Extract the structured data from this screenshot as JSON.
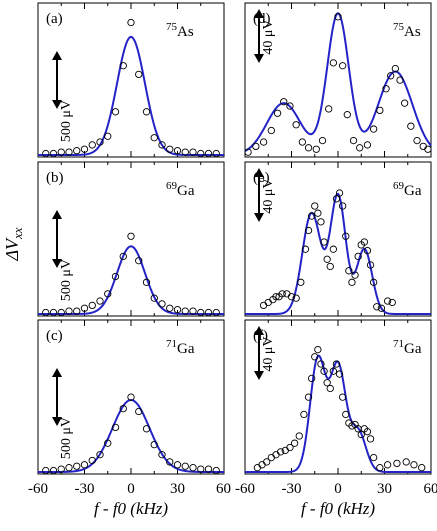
{
  "figure": {
    "y_axis_label": "ΔV",
    "y_axis_label_sub": "xx"
  },
  "chart_data": [
    {
      "id": "a",
      "type": "line",
      "panel_label": "(a)",
      "nucleus_mass": "75",
      "nucleus": "As",
      "scale_bar_label": "500 μV",
      "xlabel": "",
      "xlim": [
        -60,
        60
      ],
      "ylim": [
        0,
        1.0
      ],
      "fit": {
        "name": "",
        "color": "#2323c8",
        "peaks": [
          {
            "center": 0,
            "amp": 0.82,
            "width": 9
          }
        ]
      },
      "points": {
        "x": [
          -55,
          -50,
          -45,
          -40,
          -35,
          -30,
          -25,
          -20,
          -15,
          -10,
          -5,
          0,
          5,
          10,
          15,
          20,
          25,
          30,
          35,
          40,
          45,
          50,
          55
        ],
        "y": [
          0.01,
          0.01,
          0.02,
          0.02,
          0.03,
          0.04,
          0.07,
          0.09,
          0.13,
          0.3,
          0.62,
          0.92,
          0.56,
          0.3,
          0.12,
          0.07,
          0.04,
          0.03,
          0.02,
          0.02,
          0.01,
          0.01,
          0.01
        ]
      }
    },
    {
      "id": "b",
      "type": "line",
      "panel_label": "(b)",
      "nucleus_mass": "69",
      "nucleus": "Ga",
      "scale_bar_label": "500 μV",
      "xlabel": "",
      "xlim": [
        -60,
        60
      ],
      "ylim": [
        0,
        1.0
      ],
      "fit": {
        "name": "",
        "color": "#2323c8",
        "peaks": [
          {
            "center": 0,
            "amp": 0.47,
            "width": 9
          }
        ]
      },
      "points": {
        "x": [
          -55,
          -50,
          -45,
          -40,
          -35,
          -30,
          -25,
          -20,
          -15,
          -10,
          -5,
          0,
          5,
          10,
          15,
          20,
          25,
          30,
          35,
          40,
          45,
          50,
          55
        ],
        "y": [
          0.01,
          0.01,
          0.01,
          0.02,
          0.02,
          0.04,
          0.06,
          0.09,
          0.14,
          0.26,
          0.4,
          0.54,
          0.37,
          0.22,
          0.11,
          0.07,
          0.04,
          0.03,
          0.02,
          0.02,
          0.01,
          0.01,
          0.01
        ]
      }
    },
    {
      "id": "c",
      "type": "line",
      "panel_label": "(c)",
      "nucleus_mass": "71",
      "nucleus": "Ga",
      "scale_bar_label": "500 μV",
      "xlabel": "f - f0 (kHz)",
      "xtick_labels": [
        "-60",
        "-30",
        "0",
        "30",
        "60"
      ],
      "xlim": [
        -60,
        60
      ],
      "ylim": [
        0,
        1.0
      ],
      "fit": {
        "name": "",
        "color": "#2323c8",
        "peaks": [
          {
            "center": 0,
            "amp": 0.5,
            "width": 12
          }
        ]
      },
      "points": {
        "x": [
          -55,
          -50,
          -45,
          -40,
          -35,
          -30,
          -25,
          -20,
          -15,
          -10,
          -5,
          0,
          5,
          10,
          15,
          20,
          25,
          30,
          35,
          40,
          45,
          50,
          55
        ],
        "y": [
          0.01,
          0.01,
          0.02,
          0.03,
          0.04,
          0.05,
          0.08,
          0.12,
          0.2,
          0.31,
          0.44,
          0.52,
          0.42,
          0.3,
          0.19,
          0.12,
          0.07,
          0.05,
          0.04,
          0.03,
          0.02,
          0.02,
          0.01
        ]
      }
    },
    {
      "id": "d",
      "type": "line",
      "panel_label": "(d)",
      "nucleus_mass": "75",
      "nucleus": "As",
      "scale_bar_label": "40 μV",
      "xlabel": "",
      "xlim": [
        -60,
        60
      ],
      "ylim": [
        0,
        1.0
      ],
      "fit": {
        "name": "",
        "color": "#2323c8",
        "peaks": [
          {
            "center": -35,
            "amp": 0.36,
            "width": 11
          },
          {
            "center": 0,
            "amp": 0.98,
            "width": 7
          },
          {
            "center": 37,
            "amp": 0.58,
            "width": 11
          }
        ]
      },
      "points": {
        "x": [
          -58,
          -53,
          -48,
          -43,
          -39,
          -35,
          -31,
          -27,
          -23,
          -19,
          -14,
          -10,
          -6,
          -3,
          0,
          3,
          6,
          10,
          14,
          19,
          23,
          27,
          31,
          34,
          37,
          40,
          43,
          47,
          51,
          55,
          58
        ],
        "y": [
          0.02,
          0.06,
          0.09,
          0.17,
          0.29,
          0.37,
          0.34,
          0.21,
          0.09,
          0.05,
          0.04,
          0.1,
          0.32,
          0.64,
          0.96,
          0.62,
          0.28,
          0.1,
          0.05,
          0.07,
          0.18,
          0.31,
          0.46,
          0.55,
          0.6,
          0.52,
          0.36,
          0.2,
          0.1,
          0.06,
          0.04
        ]
      }
    },
    {
      "id": "e",
      "type": "line",
      "panel_label": "(e)",
      "nucleus_mass": "69",
      "nucleus": "Ga",
      "scale_bar_label": "40 μV",
      "xlabel": "",
      "xlim": [
        -60,
        60
      ],
      "ylim": [
        0,
        1.0
      ],
      "fit": {
        "name": "",
        "color": "#2323c8",
        "peaks": [
          {
            "center": -17,
            "amp": 0.7,
            "width": 6
          },
          {
            "center": 0,
            "amp": 0.82,
            "width": 5
          },
          {
            "center": 17,
            "amp": 0.45,
            "width": 5
          }
        ]
      },
      "points": {
        "x": [
          -48,
          -45,
          -42,
          -40,
          -38,
          -36,
          -33,
          -30,
          -27,
          -24,
          -21,
          -19,
          -17,
          -15,
          -13,
          -11,
          -9,
          -7,
          -5,
          -3,
          -1,
          1,
          3,
          5,
          7,
          9,
          11,
          13,
          15,
          17,
          19,
          21,
          23,
          25,
          28,
          32,
          35
        ],
        "y": [
          0.06,
          0.08,
          0.1,
          0.12,
          0.12,
          0.14,
          0.14,
          0.12,
          0.11,
          0.22,
          0.45,
          0.58,
          0.68,
          0.75,
          0.7,
          0.64,
          0.5,
          0.38,
          0.33,
          0.45,
          0.8,
          0.84,
          0.75,
          0.54,
          0.3,
          0.22,
          0.27,
          0.4,
          0.48,
          0.5,
          0.44,
          0.34,
          0.22,
          0.05,
          0.04,
          0.09,
          0.08
        ]
      }
    },
    {
      "id": "f",
      "type": "line",
      "panel_label": "(f)",
      "nucleus_mass": "71",
      "nucleus": "Ga",
      "scale_bar_label": "40 μV",
      "xlabel": "f - f0 (kHz)",
      "xtick_labels": [
        "-60",
        "-30",
        "0",
        "30",
        "60"
      ],
      "xlim": [
        -60,
        60
      ],
      "ylim": [
        0,
        1.0
      ],
      "fit": {
        "name": "",
        "color": "#2323c8",
        "peaks": [
          {
            "center": -13,
            "amp": 0.78,
            "width": 5
          },
          {
            "center": 0,
            "amp": 0.73,
            "width": 5
          },
          {
            "center": 13,
            "amp": 0.28,
            "width": 5
          }
        ]
      },
      "points": {
        "x": [
          -52,
          -49,
          -46,
          -43,
          -40,
          -37,
          -34,
          -31,
          -28,
          -25,
          -22,
          -19,
          -17,
          -15,
          -13,
          -11,
          -9,
          -7,
          -5,
          -3,
          -1,
          1,
          3,
          5,
          7,
          9,
          11,
          13,
          15,
          17,
          19,
          21,
          23,
          27,
          32,
          38,
          44,
          49,
          54
        ],
        "y": [
          0.03,
          0.05,
          0.07,
          0.1,
          0.12,
          0.14,
          0.15,
          0.17,
          0.2,
          0.25,
          0.4,
          0.52,
          0.65,
          0.8,
          0.85,
          0.75,
          0.7,
          0.62,
          0.58,
          0.7,
          0.75,
          0.68,
          0.52,
          0.4,
          0.34,
          0.32,
          0.33,
          0.3,
          0.26,
          0.3,
          0.28,
          0.23,
          0.1,
          0.03,
          0.05,
          0.06,
          0.07,
          0.05,
          0.03
        ]
      }
    }
  ]
}
